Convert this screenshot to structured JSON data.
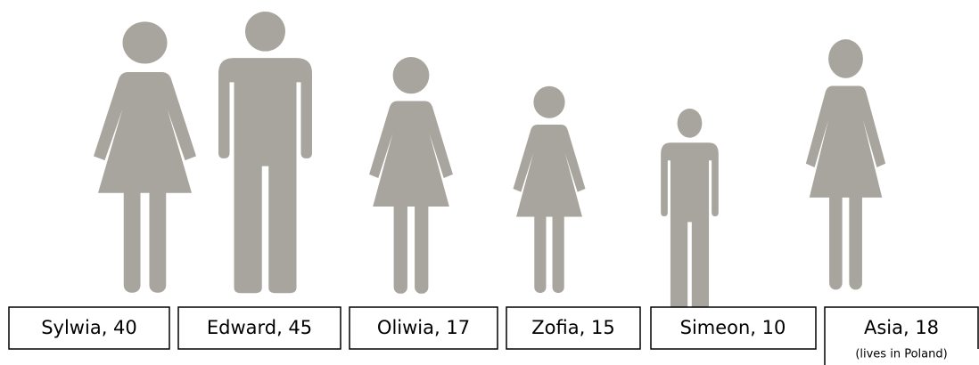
{
  "people": [
    {
      "label": "Sylwia, 40"
    },
    {
      "label": "Edward, 45"
    },
    {
      "label": "Oliwia, 17"
    },
    {
      "label": "Zofia, 15"
    },
    {
      "label": "Simeon, 10"
    },
    {
      "label": "Asia, 18",
      "note": "(lives in Poland)"
    }
  ]
}
